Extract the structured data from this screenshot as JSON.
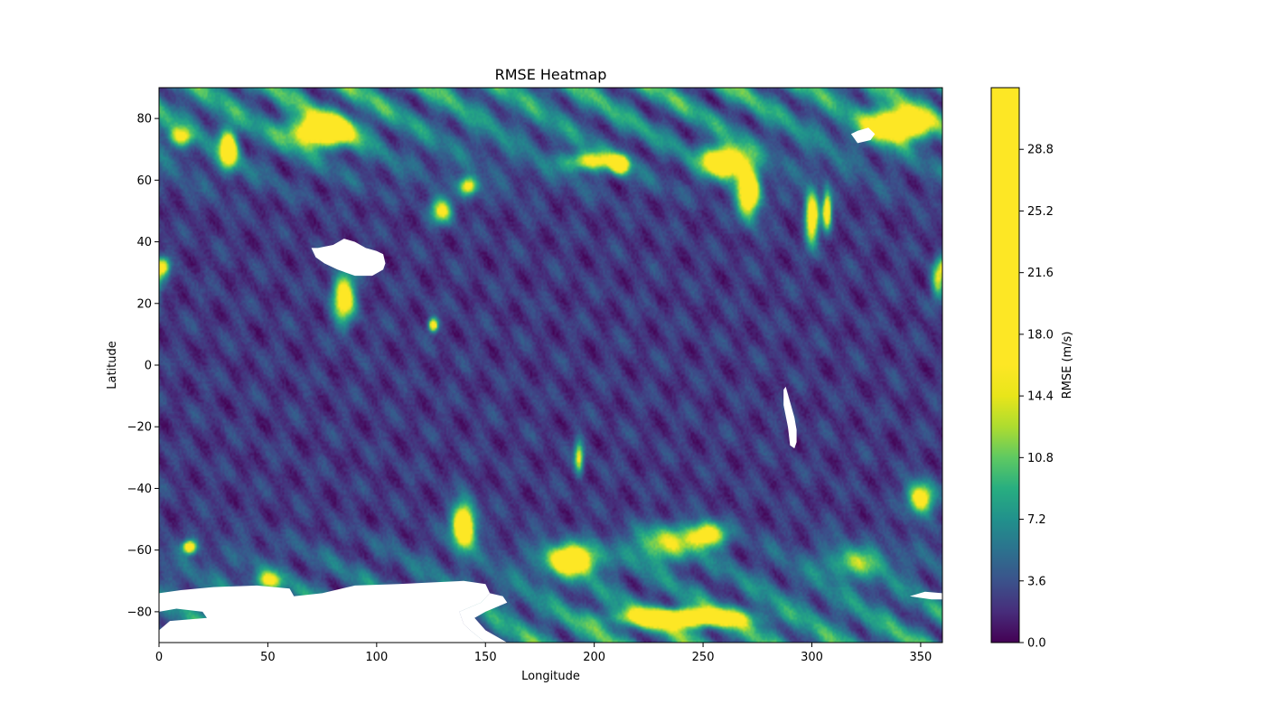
{
  "chart_data": {
    "type": "heatmap",
    "title": "RMSE Heatmap",
    "xlabel": "Longitude",
    "ylabel": "Latitude",
    "xlim": [
      0,
      360
    ],
    "ylim": [
      -90,
      90
    ],
    "x_ticks": [
      0,
      50,
      100,
      150,
      200,
      250,
      300,
      350
    ],
    "y_ticks": [
      -80,
      -60,
      -40,
      -20,
      0,
      20,
      40,
      60,
      80
    ],
    "colorbar": {
      "label": "RMSE (m/s)",
      "colormap": "viridis",
      "range": [
        0.0,
        32.4
      ],
      "ticks": [
        "0.0",
        "3.6",
        "7.2",
        "10.8",
        "14.4",
        "18.0",
        "21.6",
        "25.2",
        "28.8"
      ],
      "saturation_value": 16.0
    },
    "background_level": 2.0,
    "masked_color": "#ffffff",
    "hotspots": [
      {
        "lon": 75,
        "lat": 76,
        "value": 24,
        "rlon": 14,
        "rlat": 5
      },
      {
        "lon": 32,
        "lat": 70,
        "value": 20,
        "rlon": 4,
        "rlat": 6
      },
      {
        "lon": 10,
        "lat": 74,
        "value": 12,
        "rlon": 5,
        "rlat": 3
      },
      {
        "lon": 340,
        "lat": 78,
        "value": 24,
        "rlon": 14,
        "rlat": 5
      },
      {
        "lon": 260,
        "lat": 66,
        "value": 22,
        "rlon": 10,
        "rlat": 5
      },
      {
        "lon": 271,
        "lat": 56,
        "value": 22,
        "rlon": 5,
        "rlat": 8
      },
      {
        "lon": 198,
        "lat": 66,
        "value": 14,
        "rlon": 12,
        "rlat": 3
      },
      {
        "lon": 212,
        "lat": 65,
        "value": 18,
        "rlon": 4,
        "rlat": 3
      },
      {
        "lon": 142,
        "lat": 58,
        "value": 16,
        "rlon": 4,
        "rlat": 3
      },
      {
        "lon": 130,
        "lat": 50,
        "value": 14,
        "rlon": 5,
        "rlat": 4
      },
      {
        "lon": 300,
        "lat": 48,
        "value": 20,
        "rlon": 3,
        "rlat": 8
      },
      {
        "lon": 307,
        "lat": 50,
        "value": 18,
        "rlon": 2,
        "rlat": 6
      },
      {
        "lon": 85,
        "lat": 22,
        "value": 18,
        "rlon": 5,
        "rlat": 8
      },
      {
        "lon": 2,
        "lat": 32,
        "value": 14,
        "rlon": 3,
        "rlat": 3
      },
      {
        "lon": 126,
        "lat": 13,
        "value": 20,
        "rlon": 2,
        "rlat": 2
      },
      {
        "lon": 358,
        "lat": 28,
        "value": 12,
        "rlon": 3,
        "rlat": 6
      },
      {
        "lon": 140,
        "lat": -52,
        "value": 24,
        "rlon": 5,
        "rlat": 7
      },
      {
        "lon": 190,
        "lat": -63,
        "value": 20,
        "rlon": 12,
        "rlat": 5
      },
      {
        "lon": 252,
        "lat": -55,
        "value": 18,
        "rlon": 8,
        "rlat": 4
      },
      {
        "lon": 350,
        "lat": -43,
        "value": 18,
        "rlon": 6,
        "rlat": 5
      },
      {
        "lon": 14,
        "lat": -59,
        "value": 20,
        "rlon": 3,
        "rlat": 2
      },
      {
        "lon": 240,
        "lat": -82,
        "value": 22,
        "rlon": 28,
        "rlat": 3
      },
      {
        "lon": 193,
        "lat": -30,
        "value": 14,
        "rlon": 2,
        "rlat": 5
      },
      {
        "lon": 232,
        "lat": -58,
        "value": 12,
        "rlon": 14,
        "rlat": 6
      },
      {
        "lon": 320,
        "lat": -64,
        "value": 9,
        "rlon": 14,
        "rlat": 5
      },
      {
        "lon": 50,
        "lat": -70,
        "value": 12,
        "rlon": 6,
        "rlat": 3
      }
    ]
  }
}
